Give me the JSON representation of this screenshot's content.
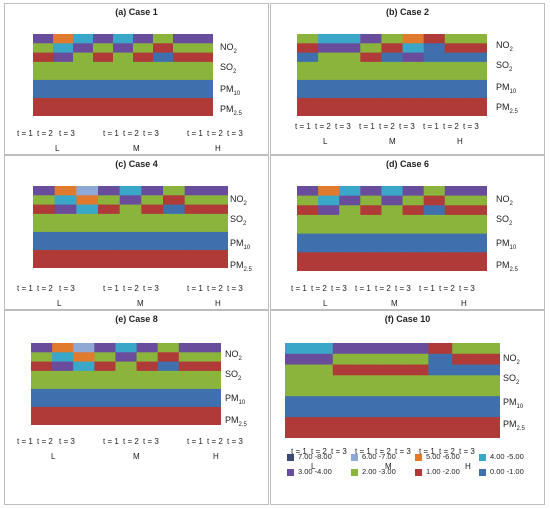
{
  "rows": [
    {
      "label": "NO",
      "sub": "2"
    },
    {
      "label": "SO",
      "sub": "2"
    },
    {
      "label": "PM",
      "sub": "10"
    },
    {
      "label": "PM",
      "sub": "2.5"
    }
  ],
  "t_labels": [
    "t = 1",
    "t = 2",
    "t = 3",
    "t = 1",
    "t = 2",
    "t = 3",
    "t = 1",
    "t = 2",
    "t = 3"
  ],
  "group_labels": [
    "L",
    "M",
    "H"
  ],
  "legend": [
    {
      "label": "7.00 -8.00",
      "color": "#3a4a72"
    },
    {
      "label": "6.00 -7.00",
      "color": "#8fa9d6"
    },
    {
      "label": "5.00 -6.00",
      "color": "#e07a2c"
    },
    {
      "label": "4.00 -5.00",
      "color": "#3aa6c8"
    },
    {
      "label": "3.00 -4.00",
      "color": "#6a4c9c"
    },
    {
      "label": "2.00 -3.00",
      "color": "#8ab43c"
    },
    {
      "label": "1.00 -2.00",
      "color": "#b03a38"
    },
    {
      "label": "0.00 -1.00",
      "color": "#3f6fad"
    }
  ],
  "chart_data": [
    {
      "type": "heatmap",
      "title": "(a) Case 1",
      "ylabel": "",
      "xlabel": "",
      "rows": [
        "NO2",
        "SO2",
        "PM10",
        "PM2.5"
      ],
      "x": [
        "L t=1",
        "L t=2",
        "L t=3",
        "M t=1",
        "M t=2",
        "M t=3",
        "H t=1",
        "H t=2",
        "H t=3"
      ],
      "values": [
        [
          3,
          5,
          4,
          3,
          4,
          3,
          2,
          3,
          3
        ],
        [
          2,
          2,
          2,
          2,
          2,
          2,
          2,
          2,
          2
        ],
        [
          0.5,
          0.5,
          0.5,
          0.5,
          0.5,
          0.5,
          0.5,
          0.5,
          0.5
        ],
        [
          1.5,
          1.5,
          1.5,
          1.5,
          1.5,
          1.5,
          1.5,
          1.5,
          1.5
        ]
      ]
    },
    {
      "type": "heatmap",
      "title": "(b) Case 2",
      "ylabel": "",
      "xlabel": "",
      "rows": [
        "NO2",
        "SO2",
        "PM10",
        "PM2.5"
      ],
      "x": [
        "L t=1",
        "L t=2",
        "L t=3",
        "M t=1",
        "M t=2",
        "M t=3",
        "H t=1",
        "H t=2",
        "H t=3"
      ],
      "values": [
        [
          2,
          4,
          4,
          3,
          2,
          5,
          1,
          2,
          2
        ],
        [
          2,
          2,
          2,
          2,
          2,
          2,
          2,
          2,
          2
        ],
        [
          0.5,
          0.5,
          0.5,
          0.5,
          0.5,
          0.5,
          0.5,
          0.5,
          0.5
        ],
        [
          1.5,
          1.5,
          1.5,
          1.5,
          1.5,
          1.5,
          1.5,
          1.5,
          1.5
        ]
      ]
    },
    {
      "type": "heatmap",
      "title": "(c) Case 4",
      "ylabel": "",
      "xlabel": "",
      "rows": [
        "NO2",
        "SO2",
        "PM10",
        "PM2.5"
      ],
      "x": [
        "L t=1",
        "L t=2",
        "L t=3",
        "M t=1",
        "M t=2",
        "M t=3",
        "H t=1",
        "H t=2",
        "H t=3"
      ],
      "values": [
        [
          3,
          5,
          6,
          3,
          4,
          3,
          2,
          3,
          3
        ],
        [
          2,
          2,
          2,
          2,
          2,
          2,
          2,
          2,
          2
        ],
        [
          0.5,
          0.5,
          0.5,
          0.5,
          0.5,
          0.5,
          0.5,
          0.5,
          0.5
        ],
        [
          1.5,
          1.5,
          1.5,
          1.5,
          1.5,
          1.5,
          1.5,
          1.5,
          1.5
        ]
      ]
    },
    {
      "type": "heatmap",
      "title": "(d) Case 6",
      "ylabel": "",
      "xlabel": "",
      "rows": [
        "NO2",
        "SO2",
        "PM10",
        "PM2.5"
      ],
      "x": [
        "L t=1",
        "L t=2",
        "L t=3",
        "M t=1",
        "M t=2",
        "M t=3",
        "H t=1",
        "H t=2",
        "H t=3"
      ],
      "values": [
        [
          3,
          5,
          4,
          3,
          4,
          3,
          2,
          3,
          3
        ],
        [
          2,
          2,
          2,
          2,
          2,
          2,
          2,
          2,
          2
        ],
        [
          0.5,
          0.5,
          0.5,
          0.5,
          0.5,
          0.5,
          0.5,
          0.5,
          0.5
        ],
        [
          1.5,
          1.5,
          1.5,
          1.5,
          1.5,
          1.5,
          1.5,
          1.5,
          1.5
        ]
      ]
    },
    {
      "type": "heatmap",
      "title": "(e) Case 8",
      "ylabel": "",
      "xlabel": "",
      "rows": [
        "NO2",
        "SO2",
        "PM10",
        "PM2.5"
      ],
      "x": [
        "L t=1",
        "L t=2",
        "L t=3",
        "M t=1",
        "M t=2",
        "M t=3",
        "H t=1",
        "H t=2",
        "H t=3"
      ],
      "values": [
        [
          3,
          5,
          6,
          3,
          4,
          3,
          2,
          3,
          3
        ],
        [
          2,
          2,
          2,
          2,
          2,
          2,
          2,
          2,
          2
        ],
        [
          0.5,
          0.5,
          0.5,
          0.5,
          0.5,
          0.5,
          0.5,
          0.5,
          0.5
        ],
        [
          1.5,
          1.5,
          1.5,
          1.5,
          1.5,
          1.5,
          1.5,
          1.5,
          1.5
        ]
      ]
    },
    {
      "type": "heatmap",
      "title": "(f) Case 10",
      "ylabel": "",
      "xlabel": "",
      "rows": [
        "NO2",
        "SO2",
        "PM10",
        "PM2.5"
      ],
      "x": [
        "L t=1",
        "L t=2",
        "L t=3",
        "M t=1",
        "M t=2",
        "M t=3",
        "H t=1",
        "H t=2",
        "H t=3"
      ],
      "values": [
        [
          4,
          4,
          3,
          3,
          3,
          3,
          1,
          2,
          2
        ],
        [
          2,
          2,
          2,
          2,
          2,
          2,
          2,
          2,
          2
        ],
        [
          0.5,
          0.5,
          0.5,
          0.5,
          0.5,
          0.5,
          0.5,
          0.5,
          0.5
        ],
        [
          1.5,
          1.5,
          1.5,
          1.5,
          1.5,
          1.5,
          1.5,
          1.5,
          1.5
        ]
      ]
    }
  ]
}
